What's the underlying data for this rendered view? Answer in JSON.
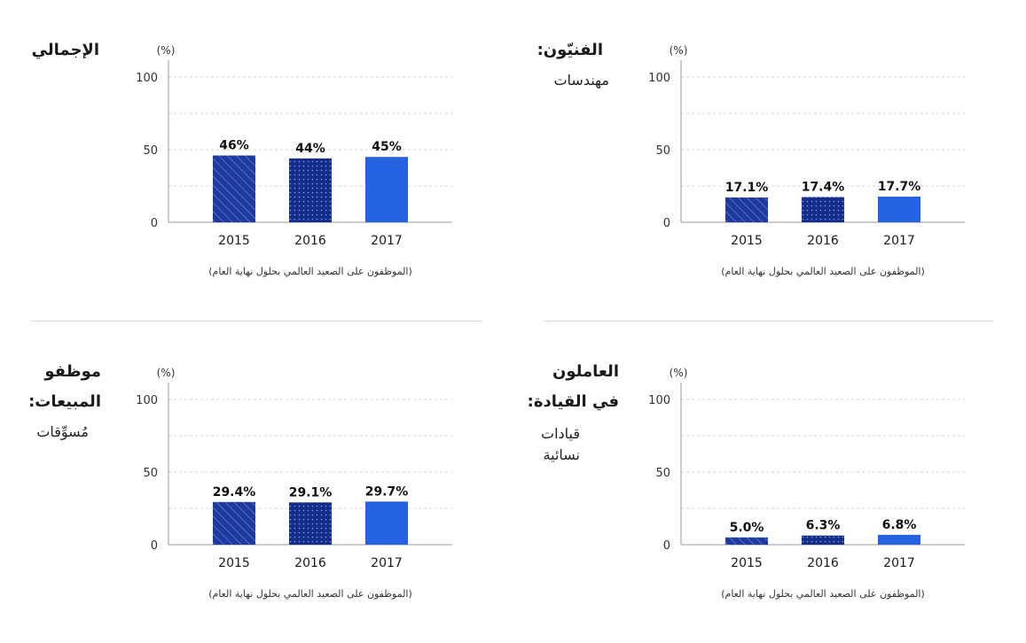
{
  "chart_data": [
    {
      "type": "bar",
      "title": "الإجمالي",
      "subtitle": "",
      "unit_label": "(%)",
      "note": "(الموظفون على الصعيد العالمي بحلول نهاية العام)",
      "categories": [
        "2015",
        "2016",
        "2017"
      ],
      "values": [
        46,
        44,
        45
      ],
      "value_labels": [
        "46%",
        "44%",
        "45%"
      ],
      "yticks": [
        "100",
        "50",
        "0"
      ],
      "ylim": [
        0,
        110
      ],
      "grid": true
    },
    {
      "type": "bar",
      "title": "الفنيّون:",
      "subtitle": "مهندسات",
      "unit_label": "(%)",
      "note": "(الموظفون على الصعيد العالمي بحلول نهاية العام)",
      "categories": [
        "2015",
        "2016",
        "2017"
      ],
      "values": [
        17.1,
        17.4,
        17.7
      ],
      "value_labels": [
        "17.1%",
        "17.4%",
        "17.7%"
      ],
      "yticks": [
        "100",
        "50",
        "0"
      ],
      "ylim": [
        0,
        110
      ],
      "grid": true
    },
    {
      "type": "bar",
      "title": "موظفو\nالمبيعات:",
      "subtitle": "مُسوِّقات",
      "unit_label": "(%)",
      "note": "(الموظفون على الصعيد العالمي بحلول نهاية العام)",
      "categories": [
        "2015",
        "2016",
        "2017"
      ],
      "values": [
        29.4,
        29.1,
        29.7
      ],
      "value_labels": [
        "29.4%",
        "29.1%",
        "29.7%"
      ],
      "yticks": [
        "100",
        "50",
        "0"
      ],
      "ylim": [
        0,
        110
      ],
      "grid": true
    },
    {
      "type": "bar",
      "title": "العاملون\nفي القيادة:",
      "subtitle": "قيادات\nنسائية",
      "unit_label": "(%)",
      "note": "(الموظفون على الصعيد العالمي بحلول نهاية العام)",
      "categories": [
        "2015",
        "2016",
        "2017"
      ],
      "values": [
        5.0,
        6.3,
        6.8
      ],
      "value_labels": [
        "5.0%",
        "6.3%",
        "6.8%"
      ],
      "yticks": [
        "100",
        "50",
        "0"
      ],
      "ylim": [
        0,
        110
      ],
      "grid": true
    }
  ],
  "colors": {
    "bar_2015": "#1e3a9e",
    "bar_2016": "#142d8a",
    "bar_2017": "#2563e0",
    "axis": "#999999",
    "grid": "#d6d6d6",
    "divider": "#d9d9d9"
  }
}
